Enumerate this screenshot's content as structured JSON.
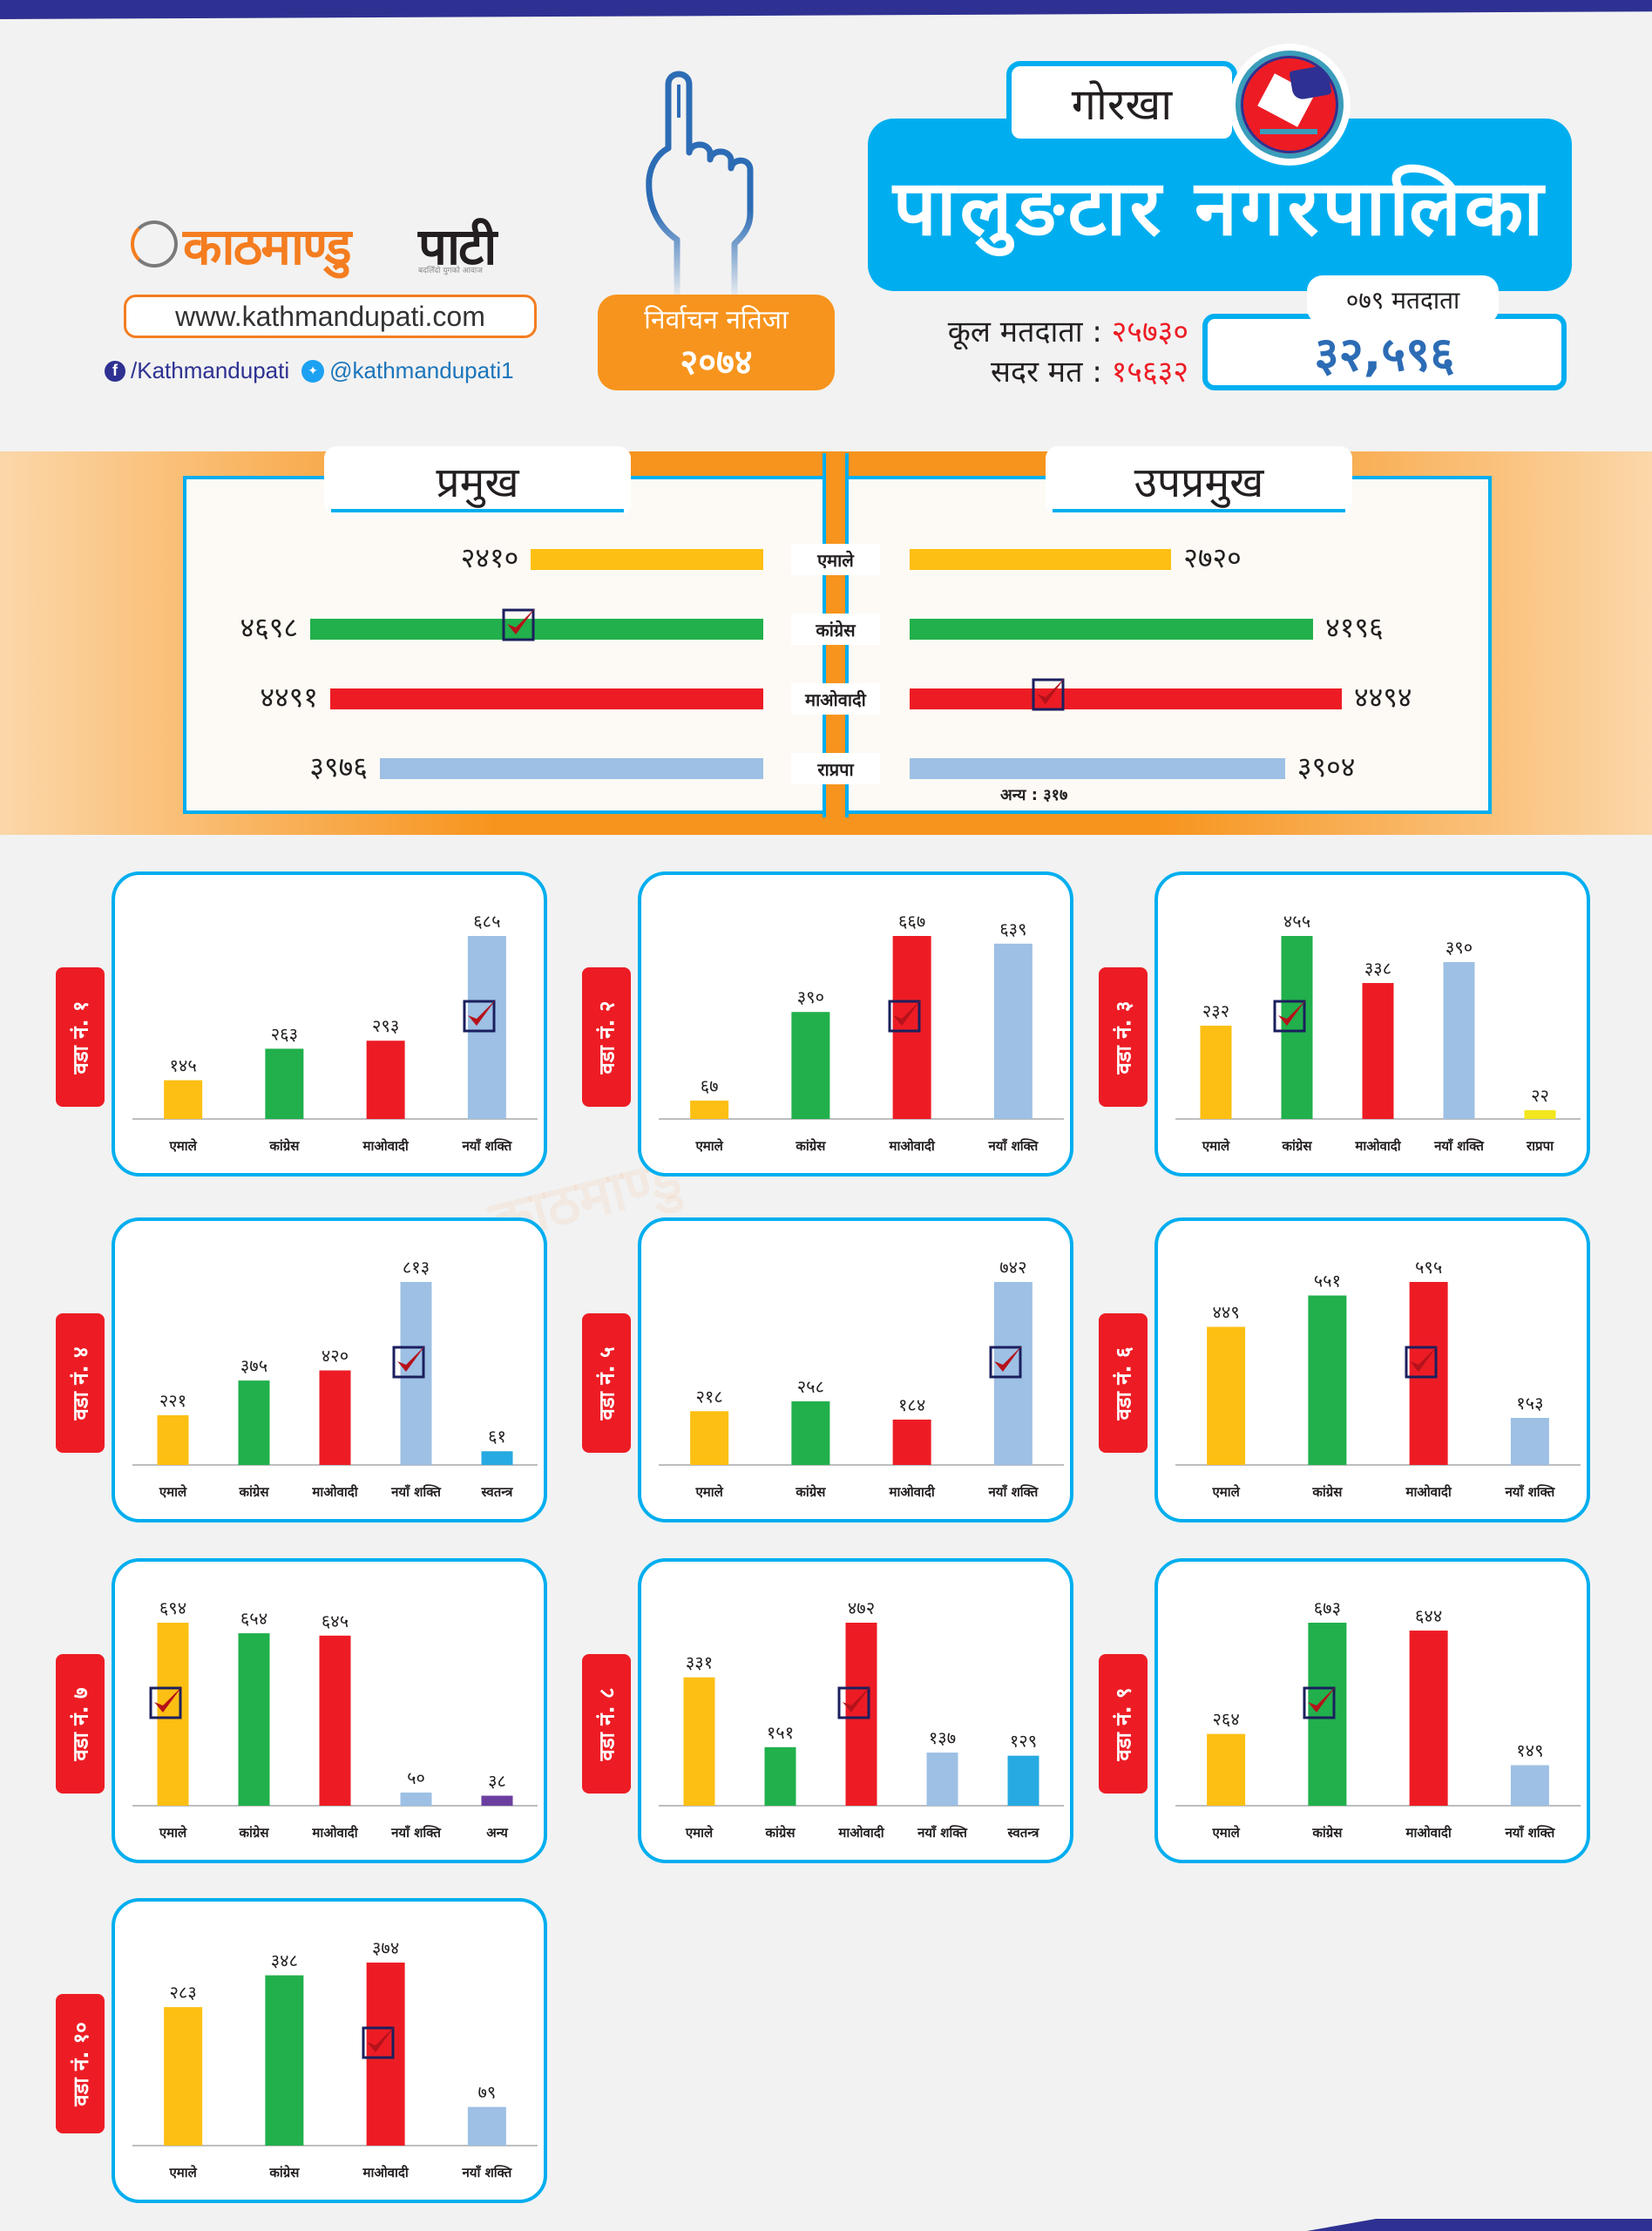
{
  "brand": {
    "logo_orange": "काठमाण्डु",
    "logo_black": "पाटी",
    "tagline": "बदलिँदो युगको आवाज",
    "website": "www.kathmandupati.com",
    "facebook": "/Kathmandupati",
    "twitter": "@kathmandupati1"
  },
  "badge": {
    "line1": "निर्वाचन नतिजा",
    "line2": "२०७४"
  },
  "header": {
    "district": "गोरखा",
    "municipality": "पालुङटार नगरपालिका",
    "total_voters_label": "कूल मतदाता :",
    "total_voters_value": "२५७३०",
    "valid_votes_label": "सदर मत :",
    "valid_votes_value": "१५६३२",
    "voters_2079_label": "०७९ मतदाता",
    "voters_2079_value": "३२,५९६"
  },
  "colors": {
    "uml": "#fdbf13",
    "congress": "#21b04b",
    "maoist": "#ed1c24",
    "naya_shakti": "#9dc0e4",
    "rpp": "#f2e61e",
    "independent": "#27aae1",
    "others": "#6b3fa0",
    "accent_blue": "#00aeef",
    "accent_orange": "#f7941d",
    "ward_tab": "#ed1c24",
    "check_box": "#1b1f5e",
    "check_mark": "#b5121b"
  },
  "chart_data": [
    {
      "type": "bar",
      "title": "प्रमुख",
      "orientation": "horizontal",
      "categories": [
        "एमाले",
        "कांग्रेस",
        "माओवादी",
        "राप्रपा"
      ],
      "values": [
        2410,
        4698,
        4491,
        3976
      ],
      "labels": [
        "२४१०",
        "४६९८",
        "४४९१",
        "३९७६"
      ],
      "colors": [
        "#fdbf13",
        "#21b04b",
        "#ed1c24",
        "#9dc0e4"
      ],
      "winner_index": 1,
      "xlim": [
        0,
        4698
      ]
    },
    {
      "type": "bar",
      "title": "उपप्रमुख",
      "orientation": "horizontal",
      "categories": [
        "एमाले",
        "कांग्रेस",
        "माओवादी",
        "राप्रपा"
      ],
      "values": [
        2720,
        4196,
        4494,
        3904
      ],
      "labels": [
        "२७२०",
        "४१९६",
        "४४९४",
        "३९०४"
      ],
      "colors": [
        "#fdbf13",
        "#21b04b",
        "#ed1c24",
        "#9dc0e4"
      ],
      "winner_index": 2,
      "xlim": [
        0,
        4494
      ],
      "annotation": "अन्य : ३१७"
    },
    {
      "type": "bar",
      "title": "वडा नं. १",
      "categories": [
        "एमाले",
        "कांग्रेस",
        "माओवादी",
        "नयाँ शक्ति"
      ],
      "values": [
        145,
        263,
        293,
        685
      ],
      "labels": [
        "१४५",
        "२६३",
        "२९३",
        "६८५"
      ],
      "colors": [
        "#fdbf13",
        "#21b04b",
        "#ed1c24",
        "#9dc0e4"
      ],
      "winner_index": 3
    },
    {
      "type": "bar",
      "title": "वडा नं. २",
      "categories": [
        "एमाले",
        "कांग्रेस",
        "माओवादी",
        "नयाँ शक्ति"
      ],
      "values": [
        67,
        390,
        667,
        639
      ],
      "labels": [
        "६७",
        "३९०",
        "६६७",
        "६३९"
      ],
      "colors": [
        "#fdbf13",
        "#21b04b",
        "#ed1c24",
        "#9dc0e4"
      ],
      "winner_index": 2
    },
    {
      "type": "bar",
      "title": "वडा नं. ३",
      "categories": [
        "एमाले",
        "कांग्रेस",
        "माओवादी",
        "नयाँ शक्ति",
        "राप्रपा"
      ],
      "values": [
        232,
        455,
        338,
        390,
        22
      ],
      "labels": [
        "२३२",
        "४५५",
        "३३८",
        "३९०",
        "२२"
      ],
      "colors": [
        "#fdbf13",
        "#21b04b",
        "#ed1c24",
        "#9dc0e4",
        "#f2e61e"
      ],
      "winner_index": 1
    },
    {
      "type": "bar",
      "title": "वडा नं. ४",
      "categories": [
        "एमाले",
        "कांग्रेस",
        "माओवादी",
        "नयाँ शक्ति",
        "स्वतन्त्र"
      ],
      "values": [
        221,
        375,
        420,
        813,
        61
      ],
      "labels": [
        "२२१",
        "३७५",
        "४२०",
        "८१३",
        "६१"
      ],
      "colors": [
        "#fdbf13",
        "#21b04b",
        "#ed1c24",
        "#9dc0e4",
        "#27aae1"
      ],
      "winner_index": 3
    },
    {
      "type": "bar",
      "title": "वडा नं. ५",
      "categories": [
        "एमाले",
        "कांग्रेस",
        "माओवादी",
        "नयाँ शक्ति"
      ],
      "values": [
        218,
        258,
        184,
        742
      ],
      "labels": [
        "२१८",
        "२५८",
        "१८४",
        "७४२"
      ],
      "colors": [
        "#fdbf13",
        "#21b04b",
        "#ed1c24",
        "#9dc0e4"
      ],
      "winner_index": 3
    },
    {
      "type": "bar",
      "title": "वडा नं. ६",
      "categories": [
        "एमाले",
        "कांग्रेस",
        "माओवादी",
        "नयाँ शक्ति"
      ],
      "values": [
        449,
        551,
        595,
        153
      ],
      "labels": [
        "४४९",
        "५५१",
        "५९५",
        "१५३"
      ],
      "colors": [
        "#fdbf13",
        "#21b04b",
        "#ed1c24",
        "#9dc0e4"
      ],
      "winner_index": 2
    },
    {
      "type": "bar",
      "title": "वडा नं. ७",
      "categories": [
        "एमाले",
        "कांग्रेस",
        "माओवादी",
        "नयाँ शक्ति",
        "अन्य"
      ],
      "values": [
        694,
        654,
        645,
        50,
        38
      ],
      "labels": [
        "६९४",
        "६५४",
        "६४५",
        "५०",
        "३८"
      ],
      "colors": [
        "#fdbf13",
        "#21b04b",
        "#ed1c24",
        "#9dc0e4",
        "#6b3fa0"
      ],
      "winner_index": 0
    },
    {
      "type": "bar",
      "title": "वडा नं. ८",
      "categories": [
        "एमाले",
        "कांग्रेस",
        "माओवादी",
        "नयाँ शक्ति",
        "स्वतन्त्र"
      ],
      "values": [
        331,
        151,
        472,
        137,
        129
      ],
      "labels": [
        "३३१",
        "१५१",
        "४७२",
        "१३७",
        "१२९"
      ],
      "colors": [
        "#fdbf13",
        "#21b04b",
        "#ed1c24",
        "#9dc0e4",
        "#27aae1"
      ],
      "winner_index": 2
    },
    {
      "type": "bar",
      "title": "वडा नं. ९",
      "categories": [
        "एमाले",
        "कांग्रेस",
        "माओवादी",
        "नयाँ शक्ति"
      ],
      "values": [
        264,
        673,
        644,
        149
      ],
      "labels": [
        "२६४",
        "६७३",
        "६४४",
        "१४९"
      ],
      "colors": [
        "#fdbf13",
        "#21b04b",
        "#ed1c24",
        "#9dc0e4"
      ],
      "winner_index": 1
    },
    {
      "type": "bar",
      "title": "वडा नं. १०",
      "categories": [
        "एमाले",
        "कांग्रेस",
        "माओवादी",
        "नयाँ शक्ति"
      ],
      "values": [
        283,
        348,
        374,
        79
      ],
      "labels": [
        "२८३",
        "३४८",
        "३७४",
        "७९"
      ],
      "colors": [
        "#fdbf13",
        "#21b04b",
        "#ed1c24",
        "#9dc0e4"
      ],
      "winner_index": 2
    }
  ]
}
